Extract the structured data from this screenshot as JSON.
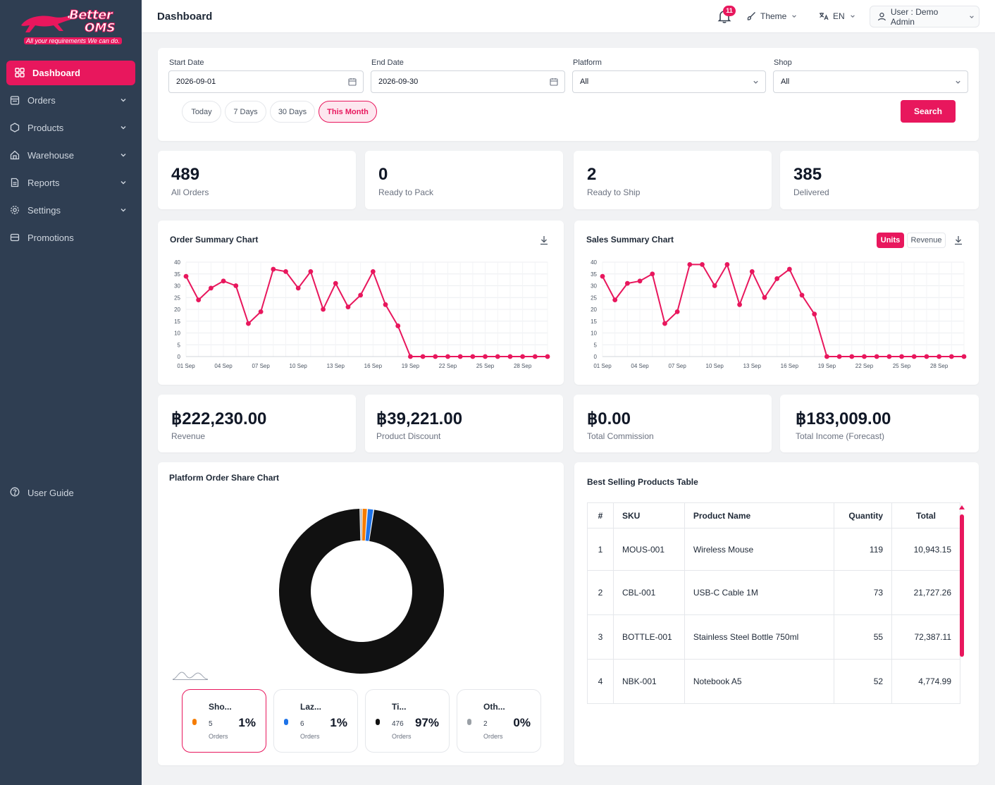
{
  "brand": {
    "name_line1": "Better",
    "name_line2": "OMS",
    "tagline": "All your requirements We can do."
  },
  "sidebar": {
    "items": [
      {
        "label": "Dashboard",
        "icon": "grid-icon",
        "active": true
      },
      {
        "label": "Orders",
        "icon": "clipboard-icon"
      },
      {
        "label": "Products",
        "icon": "hexagon-icon"
      },
      {
        "label": "Warehouse",
        "icon": "home-icon"
      },
      {
        "label": "Reports",
        "icon": "file-icon"
      },
      {
        "label": "Settings",
        "icon": "gear-icon"
      },
      {
        "label": "Promotions",
        "icon": "ticket-icon"
      }
    ],
    "user_guide": "User Guide"
  },
  "topbar": {
    "title": "Dashboard",
    "notifications": "11",
    "theme": "Theme",
    "language": "EN",
    "user": "User : Demo Admin"
  },
  "filters": {
    "start_date_label": "Start Date",
    "start_date": "2026-09-01",
    "end_date_label": "End Date",
    "end_date": "2026-09-30",
    "platform_label": "Platform",
    "platform": "All",
    "shop_label": "Shop",
    "shop": "All",
    "quick": [
      "Today",
      "7 Days",
      "30 Days",
      "This Month"
    ],
    "quick_active": "This Month",
    "search": "Search"
  },
  "order_stats": [
    {
      "value": "489",
      "label": "All Orders"
    },
    {
      "value": "0",
      "label": "Ready to Pack"
    },
    {
      "value": "2",
      "label": "Ready to Ship"
    },
    {
      "value": "385",
      "label": "Delivered"
    }
  ],
  "finance_stats": [
    {
      "value": "฿222,230.00",
      "label": "Revenue"
    },
    {
      "value": "฿39,221.00",
      "label": "Product Discount"
    },
    {
      "value": "฿0.00",
      "label": "Total Commission"
    },
    {
      "value": "฿183,009.00",
      "label": "Total Income (Forecast)"
    }
  ],
  "order_chart_title": "Order Summary Chart",
  "sales_chart_title": "Sales Summary Chart",
  "sales_toggle": {
    "units": "Units",
    "revenue": "Revenue",
    "active": "Units"
  },
  "chart_data": [
    {
      "type": "line",
      "title": "Order Summary Chart",
      "x": [
        "01 Sep",
        "02 Sep",
        "03 Sep",
        "04 Sep",
        "05 Sep",
        "06 Sep",
        "07 Sep",
        "08 Sep",
        "09 Sep",
        "10 Sep",
        "11 Sep",
        "12 Sep",
        "13 Sep",
        "14 Sep",
        "15 Sep",
        "16 Sep",
        "17 Sep",
        "18 Sep",
        "19 Sep",
        "20 Sep",
        "21 Sep",
        "22 Sep",
        "23 Sep",
        "24 Sep",
        "25 Sep",
        "26 Sep",
        "27 Sep",
        "28 Sep",
        "29 Sep",
        "30 Sep"
      ],
      "xticks": [
        "01 Sep",
        "04 Sep",
        "07 Sep",
        "10 Sep",
        "13 Sep",
        "16 Sep",
        "19 Sep",
        "22 Sep",
        "25 Sep",
        "28 Sep"
      ],
      "values": [
        34,
        24,
        29,
        32,
        30,
        14,
        19,
        37,
        36,
        29,
        36,
        20,
        31,
        21,
        26,
        36,
        22,
        13,
        0,
        0,
        0,
        0,
        0,
        0,
        0,
        0,
        0,
        0,
        0,
        0
      ],
      "yticks": [
        0,
        5,
        10,
        15,
        20,
        25,
        30,
        35,
        40
      ],
      "ylim": [
        0,
        40
      ],
      "color": "#e8175d",
      "grid": true
    },
    {
      "type": "line",
      "title": "Sales Summary Chart",
      "x": [
        "01 Sep",
        "02 Sep",
        "03 Sep",
        "04 Sep",
        "05 Sep",
        "06 Sep",
        "07 Sep",
        "08 Sep",
        "09 Sep",
        "10 Sep",
        "11 Sep",
        "12 Sep",
        "13 Sep",
        "14 Sep",
        "15 Sep",
        "16 Sep",
        "17 Sep",
        "18 Sep",
        "19 Sep",
        "20 Sep",
        "21 Sep",
        "22 Sep",
        "23 Sep",
        "24 Sep",
        "25 Sep",
        "26 Sep",
        "27 Sep",
        "28 Sep",
        "29 Sep",
        "30 Sep"
      ],
      "xticks": [
        "01 Sep",
        "04 Sep",
        "07 Sep",
        "10 Sep",
        "13 Sep",
        "16 Sep",
        "19 Sep",
        "22 Sep",
        "25 Sep",
        "28 Sep"
      ],
      "values": [
        34,
        24,
        31,
        32,
        35,
        14,
        19,
        39,
        39,
        30,
        39,
        22,
        36,
        25,
        33,
        37,
        26,
        18,
        0,
        0,
        0,
        0,
        0,
        0,
        0,
        0,
        0,
        0,
        0,
        0
      ],
      "yticks": [
        0,
        5,
        10,
        15,
        20,
        25,
        30,
        35,
        40
      ],
      "ylim": [
        0,
        40
      ],
      "color": "#e8175d",
      "grid": true
    },
    {
      "type": "pie",
      "title": "Platform Order Share Chart",
      "categories": [
        "Sho...",
        "Laz...",
        "Ti...",
        "Oth..."
      ],
      "values": [
        5,
        6,
        476,
        2
      ],
      "colors": [
        "#f57c00",
        "#1e73e8",
        "#111111",
        "#9aa0a6"
      ]
    }
  ],
  "platform_share": {
    "title": "Platform Order Share Chart",
    "unit": "Orders",
    "items": [
      {
        "name": "Sho...",
        "count": "5",
        "pct": "1%",
        "color": "#f57c00"
      },
      {
        "name": "Laz...",
        "count": "6",
        "pct": "1%",
        "color": "#1e73e8"
      },
      {
        "name": "Ti...",
        "count": "476",
        "pct": "97%",
        "color": "#111111"
      },
      {
        "name": "Oth...",
        "count": "2",
        "pct": "0%",
        "color": "#9aa0a6"
      }
    ]
  },
  "best_selling": {
    "title": "Best Selling Products Table",
    "headers": [
      "#",
      "SKU",
      "Product Name",
      "Quantity",
      "Total"
    ],
    "rows": [
      [
        "1",
        "MOUS-001",
        "Wireless Mouse",
        "119",
        "10,943.15"
      ],
      [
        "2",
        "CBL-001",
        "USB-C Cable 1M",
        "73",
        "21,727.26"
      ],
      [
        "3",
        "BOTTLE-001",
        "Stainless Steel Bottle 750ml",
        "55",
        "72,387.11"
      ],
      [
        "4",
        "NBK-001",
        "Notebook A5",
        "52",
        "4,774.99"
      ]
    ]
  },
  "colors": {
    "accent": "#e8175d",
    "sidebar": "#2f3e52"
  }
}
